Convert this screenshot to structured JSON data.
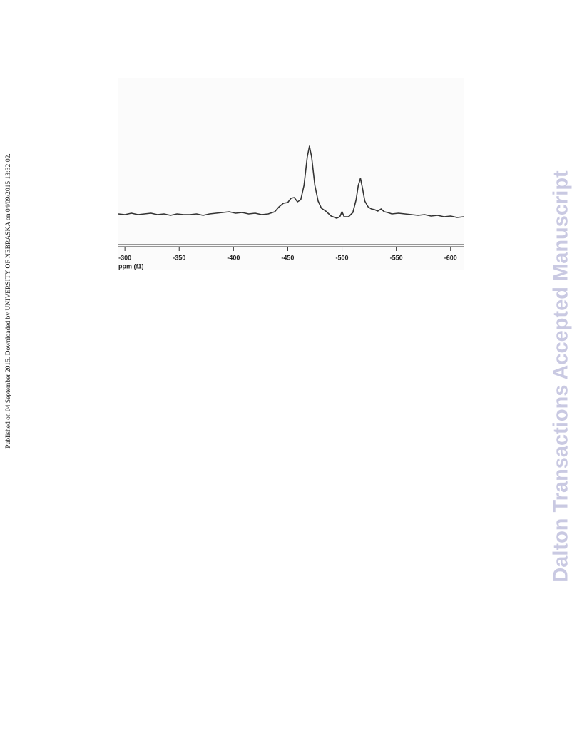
{
  "side_note": "Published on 04 September 2015. Downloaded by UNIVERSITY OF NEBRASKA on 04/09/2015 13:32:02.",
  "watermark": "Dalton Transactions Accepted Manuscript",
  "chart_data": {
    "type": "line",
    "x_label": "ppm (f1)",
    "x": [
      -294,
      -300,
      -306,
      -312,
      -318,
      -324,
      -330,
      -336,
      -342,
      -348,
      -354,
      -360,
      -366,
      -372,
      -378,
      -384,
      -390,
      -396,
      -402,
      -408,
      -414,
      -420,
      -426,
      -432,
      -438,
      -442,
      -446,
      -450,
      -453,
      -456,
      -459,
      -462,
      -465,
      -468,
      -470,
      -472,
      -475,
      -478,
      -481,
      -485,
      -490,
      -495,
      -498,
      -500,
      -502,
      -506,
      -510,
      -513,
      -515,
      -517,
      -519,
      -521,
      -524,
      -527,
      -530,
      -533,
      -536,
      -539,
      -542,
      -546,
      -552,
      -558,
      -564,
      -570,
      -576,
      -582,
      -588,
      -594,
      -600,
      -606,
      -612
    ],
    "series": [
      {
        "color": "#333333",
        "values": [
          0,
          -1,
          1,
          -1,
          0,
          1,
          -1,
          0,
          -2,
          0,
          -1,
          -1,
          0,
          -2,
          0,
          1,
          2,
          3,
          1,
          2,
          0,
          1,
          -1,
          0,
          3,
          10,
          15,
          16,
          22,
          23,
          17,
          20,
          40,
          80,
          95,
          80,
          40,
          18,
          8,
          4,
          -3,
          -6,
          -4,
          3,
          -4,
          -4,
          2,
          20,
          40,
          50,
          35,
          18,
          10,
          7,
          6,
          4,
          7,
          3,
          2,
          0,
          1,
          0,
          -1,
          -2,
          -1,
          -3,
          -2,
          -4,
          -3,
          -5,
          -4
        ]
      }
    ],
    "xlim": [
      -294,
      -612
    ],
    "xticks": [
      -300,
      -350,
      -400,
      -450,
      -500,
      -550,
      -600
    ],
    "ylim": [
      -40,
      190
    ]
  }
}
